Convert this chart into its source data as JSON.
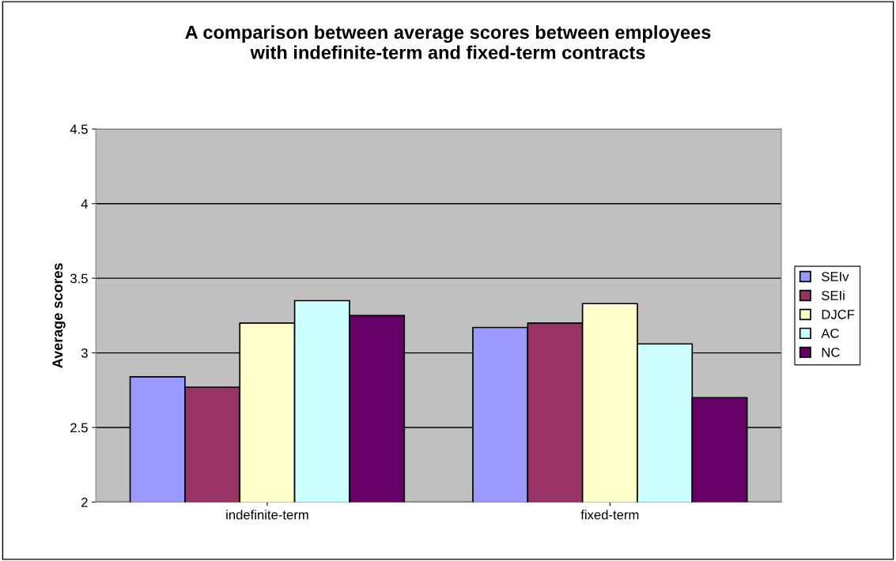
{
  "chart_data": {
    "type": "bar",
    "title": "A comparison between average scores between employees\nwith indefinite-term and fixed-term contracts",
    "ylabel": "Average scores",
    "categories": [
      "indefinite-term",
      "fixed-term"
    ],
    "series": [
      {
        "name": "SEIv",
        "color": "#9999ff",
        "values": [
          2.84,
          3.17
        ]
      },
      {
        "name": "SEIi",
        "color": "#993366",
        "values": [
          2.77,
          3.2
        ]
      },
      {
        "name": "DJCF",
        "color": "#ffffcc",
        "values": [
          3.2,
          3.33
        ]
      },
      {
        "name": "AC",
        "color": "#ccffff",
        "values": [
          3.35,
          3.06
        ]
      },
      {
        "name": "NC",
        "color": "#660066",
        "values": [
          3.25,
          2.7
        ]
      }
    ],
    "ylim": [
      2,
      4.5
    ],
    "yticks": [
      2,
      2.5,
      3,
      3.5,
      4,
      4.5
    ],
    "grid": "y",
    "legend": "right"
  }
}
